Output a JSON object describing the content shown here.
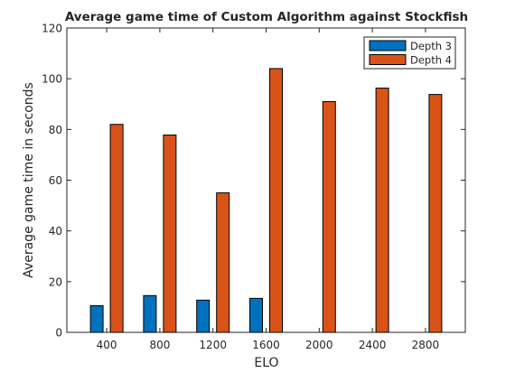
{
  "chart_data": {
    "type": "bar",
    "title": "Average game time of Custom Algorithm against Stockfish",
    "xlabel": "ELO",
    "ylabel": "Average game time in seconds",
    "categories": [
      "400",
      "800",
      "1200",
      "1600",
      "2000",
      "2400",
      "2800"
    ],
    "series": [
      {
        "name": "Depth 3",
        "color": "#0072BD",
        "values": [
          10.5,
          14.5,
          12.7,
          13.4,
          0,
          0,
          0
        ]
      },
      {
        "name": "Depth 4",
        "color": "#D95319",
        "values": [
          82,
          77.8,
          55,
          104,
          91,
          96.3,
          93.8
        ]
      }
    ],
    "ylim": [
      0,
      120
    ],
    "yticks": [
      0,
      20,
      40,
      60,
      80,
      100,
      120
    ],
    "grid": false,
    "legend_position": "top-right"
  }
}
